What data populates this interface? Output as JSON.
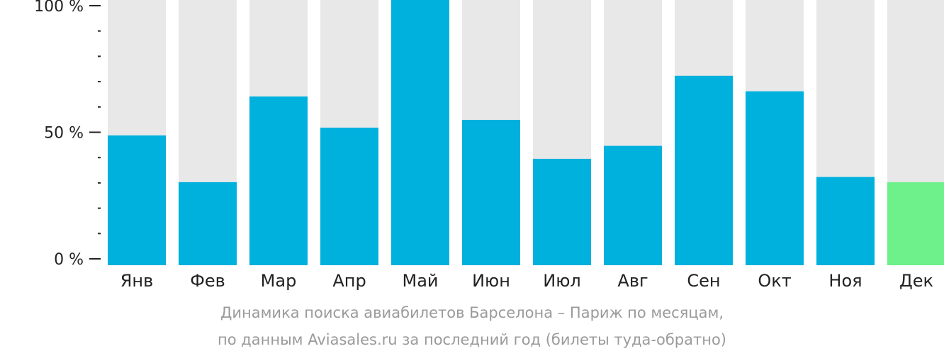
{
  "colors": {
    "bar": "#00b0dd",
    "bar_current": "#6ef08a",
    "track": "#e8e8e8",
    "axis": "#222222",
    "caption": "#9a9a9a"
  },
  "chart_data": {
    "type": "bar",
    "categories": [
      "Янв",
      "Фев",
      "Мар",
      "Апр",
      "Май",
      "Июн",
      "Июл",
      "Авг",
      "Сен",
      "Окт",
      "Ноя",
      "Дек"
    ],
    "values": [
      50,
      32,
      65,
      53,
      100,
      56,
      41,
      46,
      73,
      67,
      34,
      32
    ],
    "highlight_index": 11,
    "ylim": [
      0,
      100
    ],
    "yticks": [
      {
        "value": 0,
        "label": "0 %"
      },
      {
        "value": 50,
        "label": "50 %"
      },
      {
        "value": 100,
        "label": "100 %"
      }
    ],
    "minor_tick_step": 10,
    "xlabel": "",
    "ylabel": "",
    "grid": false
  },
  "caption": {
    "line1": "Динамика поиска авиабилетов Барселона – Париж по месяцам,",
    "line2": "по данным Aviasales.ru за последний год (билеты туда-обратно)"
  }
}
